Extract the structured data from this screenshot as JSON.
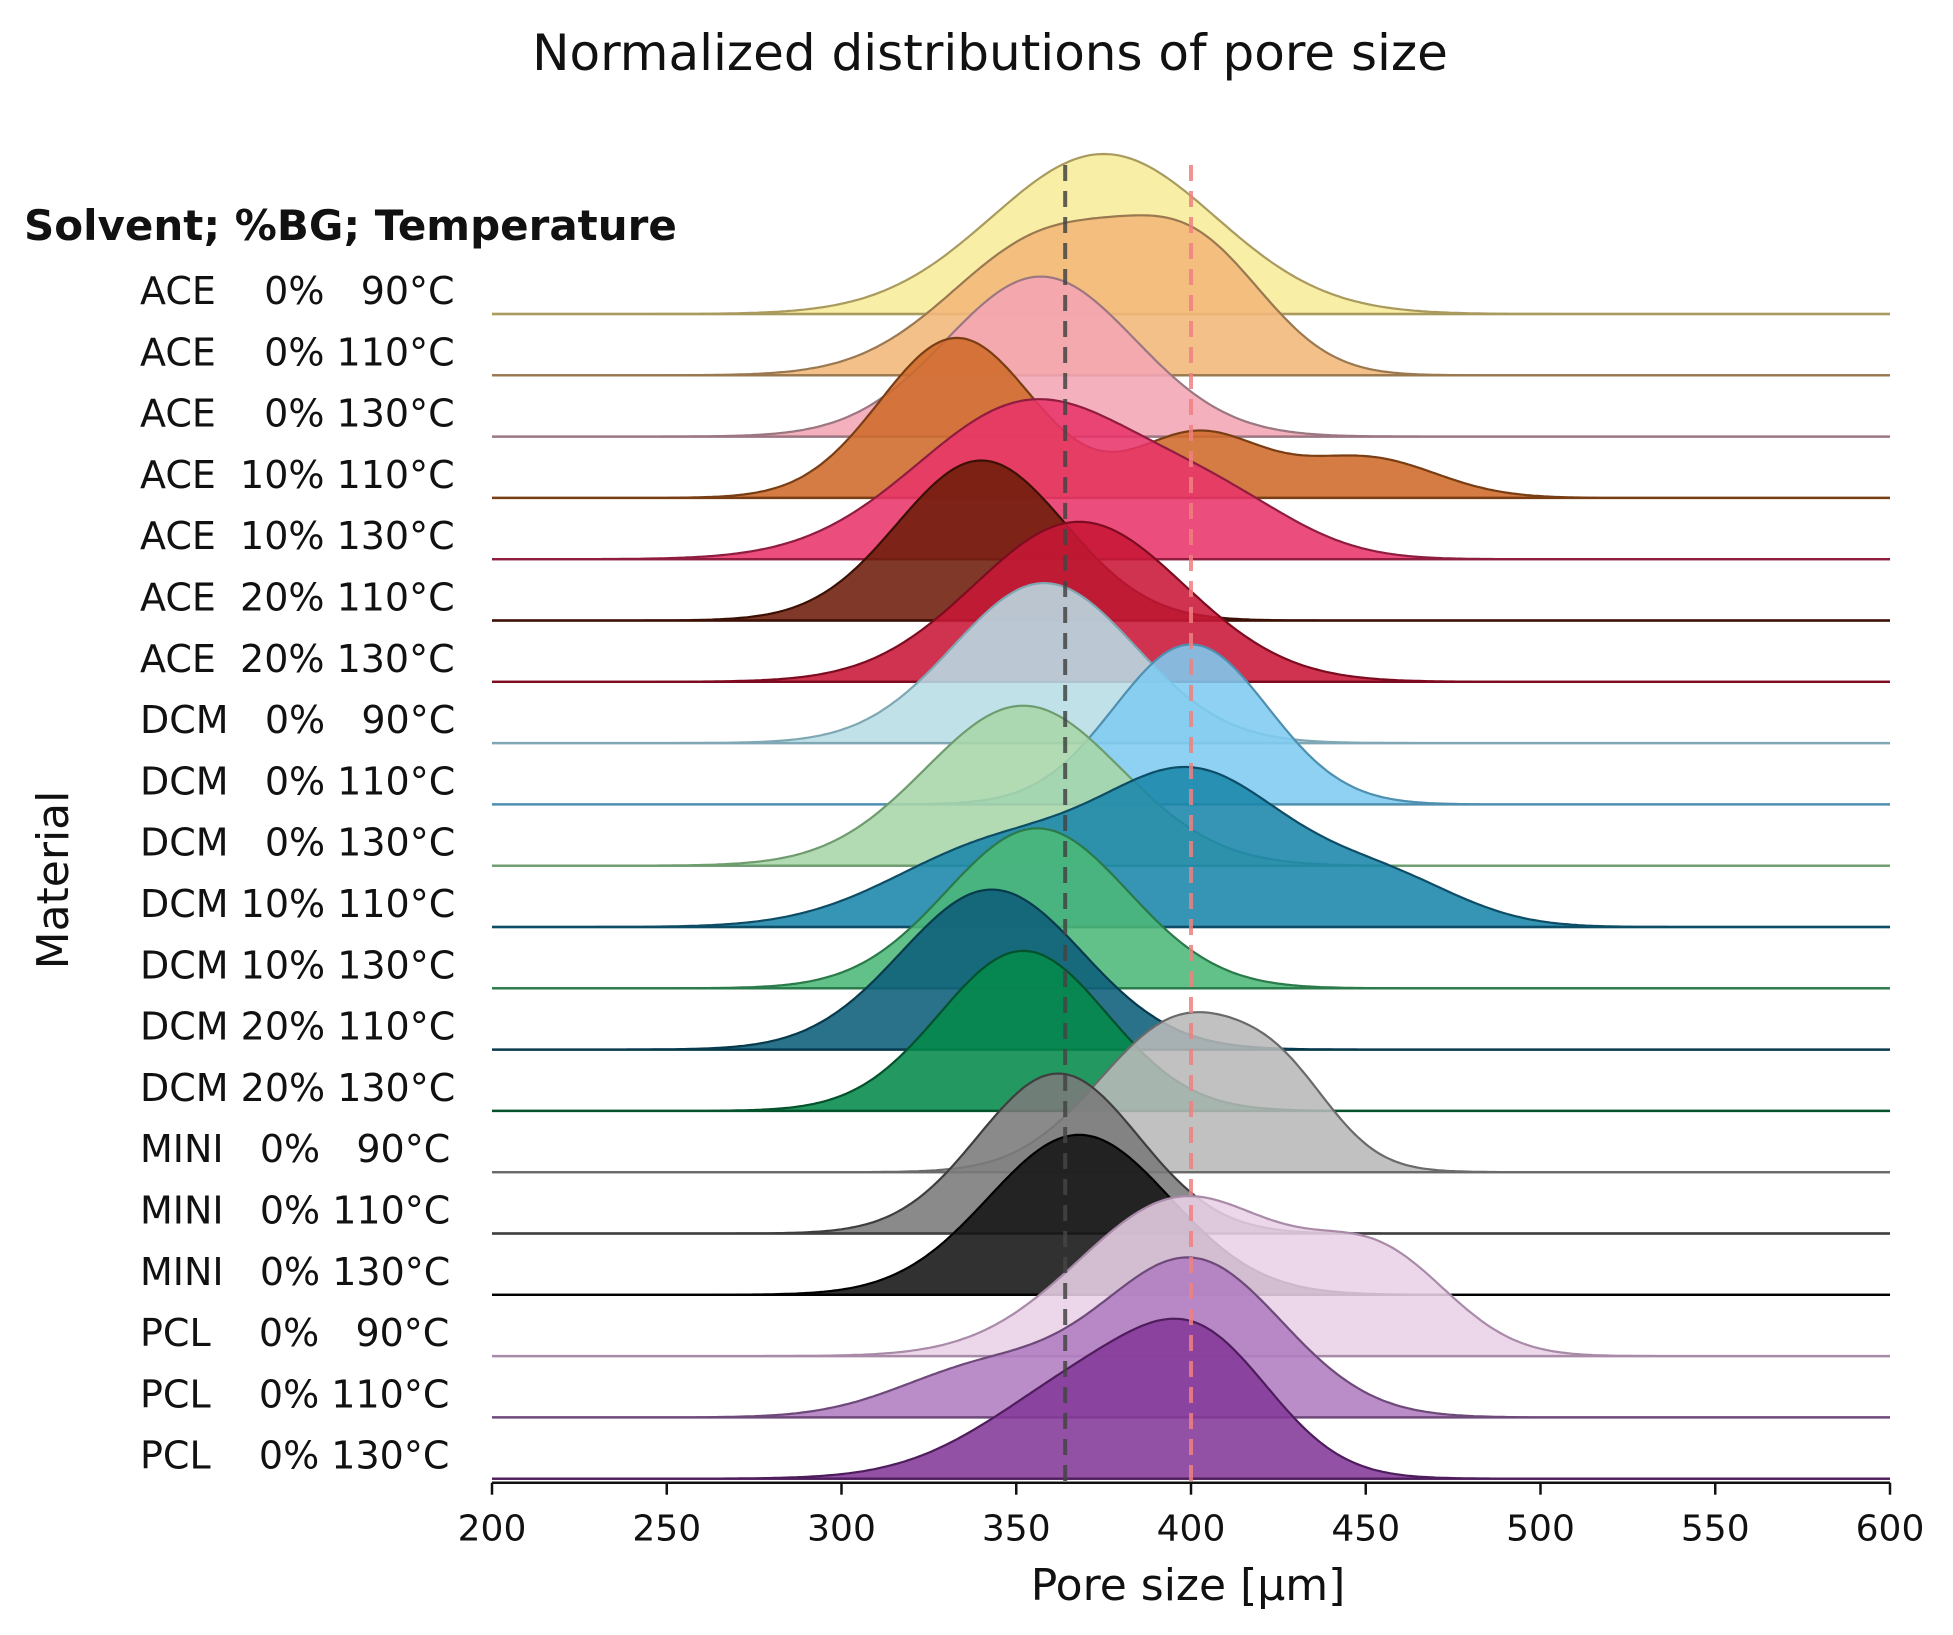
{
  "chart_data": {
    "type": "ridgeline",
    "title": "Normalized distributions of pore size",
    "xlabel": "Pore size [µm]",
    "ylabel": "Material",
    "legend_header": "Solvent; %BG; Temperature",
    "xlim": [
      200,
      600
    ],
    "xticks": [
      "200",
      "250",
      "300",
      "350",
      "400",
      "450",
      "500",
      "550",
      "600"
    ],
    "reference_lines": [
      {
        "x": 364,
        "color": "#444444",
        "style": "dashed"
      },
      {
        "x": 400,
        "color": "#f08080",
        "style": "dashed"
      }
    ],
    "series": [
      {
        "label": "ACE    0%   90°C",
        "color": "#f7ec9a",
        "edge": "#a99b5e",
        "peaks": [
          [
            375,
            32,
            1.0
          ]
        ],
        "bleed": [
          270,
          465
        ]
      },
      {
        "label": "ACE    0% 110°C",
        "color": "#f2b77a",
        "edge": "#9a7850",
        "peaks": [
          [
            360,
            28,
            1.0
          ],
          [
            403,
            20,
            0.72
          ]
        ],
        "bleed": [
          270,
          465
        ]
      },
      {
        "label": "ACE    0% 130°C",
        "color": "#f4a5b4",
        "edge": "#9c7782",
        "peaks": [
          [
            357,
            27,
            1.0
          ]
        ],
        "bleed": [
          280,
          420
        ]
      },
      {
        "label": "ACE  10% 110°C",
        "color": "#cf6a2a",
        "edge": "#7a3e15",
        "peaks": [
          [
            333,
            22,
            1.0
          ],
          [
            402,
            18,
            0.4
          ],
          [
            450,
            20,
            0.25
          ]
        ],
        "bleed": [
          200,
          510
        ]
      },
      {
        "label": "ACE  10% 130°C",
        "color": "#e8346a",
        "edge": "#8f1d40",
        "peaks": [
          [
            355,
            33,
            1.0
          ],
          [
            410,
            22,
            0.25
          ]
        ],
        "bleed": [
          200,
          600
        ]
      },
      {
        "label": "ACE  20% 110°C",
        "color": "#6e1e0a",
        "edge": "#3d1005",
        "peaks": [
          [
            340,
            24,
            1.0
          ]
        ],
        "bleed": [
          270,
          440
        ]
      },
      {
        "label": "ACE  20% 130°C",
        "color": "#c81737",
        "edge": "#7e0c20",
        "peaks": [
          [
            368,
            30,
            1.0
          ]
        ],
        "bleed": [
          200,
          600
        ]
      },
      {
        "label": "DCM   0%   90°C",
        "color": "#b8dde6",
        "edge": "#7fa8b4",
        "peaks": [
          [
            358,
            26,
            1.0
          ]
        ],
        "bleed": [
          230,
          420
        ]
      },
      {
        "label": "DCM   0% 110°C",
        "color": "#7ecbf0",
        "edge": "#4f8fb0",
        "peaks": [
          [
            400,
            22,
            1.0
          ]
        ],
        "bleed": [
          270,
          450
        ]
      },
      {
        "label": "DCM   0% 130°C",
        "color": "#a8d6a8",
        "edge": "#6e9c6e",
        "peaks": [
          [
            352,
            28,
            1.0
          ]
        ],
        "bleed": [
          270,
          440
        ]
      },
      {
        "label": "DCM 10% 110°C",
        "color": "#1a86aa",
        "edge": "#0d4d66",
        "peaks": [
          [
            345,
            30,
            0.35
          ],
          [
            402,
            26,
            0.62
          ],
          [
            455,
            22,
            0.2
          ]
        ],
        "bleed": [
          200,
          560
        ]
      },
      {
        "label": "DCM 10% 130°C",
        "color": "#4cb878",
        "edge": "#2a7a4a",
        "peaks": [
          [
            356,
            26,
            1.0
          ]
        ],
        "bleed": [
          270,
          440
        ]
      },
      {
        "label": "DCM 20% 110°C",
        "color": "#0c5d7a",
        "edge": "#073a4d",
        "peaks": [
          [
            343,
            26,
            1.0
          ]
        ],
        "bleed": [
          270,
          460
        ]
      },
      {
        "label": "DCM 20% 130°C",
        "color": "#058a4a",
        "edge": "#03522c",
        "peaks": [
          [
            352,
            24,
            1.0
          ]
        ],
        "bleed": [
          270,
          470
        ]
      },
      {
        "label": "MINI   0%   90°C",
        "color": "#b8b8b8",
        "edge": "#6a6a6a",
        "peaks": [
          [
            398,
            24,
            1.0
          ],
          [
            428,
            14,
            0.3
          ]
        ],
        "bleed": [
          270,
          470
        ]
      },
      {
        "label": "MINI   0% 110°C",
        "color": "#7a7a7a",
        "edge": "#3f3f3f",
        "peaks": [
          [
            362,
            23,
            1.0
          ]
        ],
        "bleed": [
          200,
          600
        ]
      },
      {
        "label": "MINI   0% 130°C",
        "color": "#151515",
        "edge": "#000000",
        "peaks": [
          [
            368,
            26,
            1.0
          ]
        ],
        "bleed": [
          270,
          420
        ]
      },
      {
        "label": "PCL    0%   90°C",
        "color": "#e8d2e6",
        "edge": "#a98aa8",
        "peaks": [
          [
            398,
            30,
            1.0
          ],
          [
            455,
            20,
            0.55
          ]
        ],
        "bleed": [
          240,
          520
        ]
      },
      {
        "label": "PCL    0% 110°C",
        "color": "#b07cc0",
        "edge": "#6e4a7a",
        "peaks": [
          [
            400,
            26,
            1.0
          ],
          [
            340,
            24,
            0.3
          ]
        ],
        "bleed": [
          250,
          500
        ]
      },
      {
        "label": "PCL    0% 130°C",
        "color": "#84399a",
        "edge": "#4e1d5c",
        "peaks": [
          [
            375,
            30,
            0.85
          ],
          [
            405,
            20,
            0.7
          ]
        ],
        "bleed": [
          200,
          600
        ]
      }
    ]
  }
}
